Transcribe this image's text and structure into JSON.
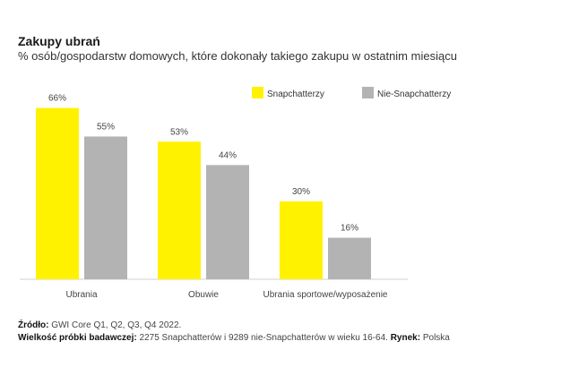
{
  "chart_data": {
    "type": "bar",
    "title": "Zakupy ubrań",
    "subtitle": "% osób/gospodarstw domowych, które dokonały takiego zakupu w ostatnim miesiącu",
    "categories": [
      "Ubrania",
      "Obuwie",
      "Ubrania sportowe/wyposażenie"
    ],
    "series": [
      {
        "name": "Snapchatterzy",
        "values": [
          66,
          53,
          30
        ],
        "labels": [
          "66%",
          "53%",
          "30%"
        ],
        "color": "#FFF200"
      },
      {
        "name": "Nie-Snapchatterzy",
        "values": [
          55,
          44,
          16
        ],
        "labels": [
          "55%",
          "44%",
          "16%"
        ],
        "color": "#B3B3B3"
      }
    ],
    "ylim": [
      0,
      100
    ],
    "legend_position": "top-right"
  },
  "footer": {
    "source_label": "Źródło:",
    "source_text": "GWI Core Q1, Q2, Q3, Q4 2022.",
    "sample_label": "Wielkość próbki badawczej:",
    "sample_text": "2275 Snapchatterów i 9289 nie-Snapchatterów w wieku 16-64.",
    "market_label": "Rynek:",
    "market_text": "Polska"
  }
}
